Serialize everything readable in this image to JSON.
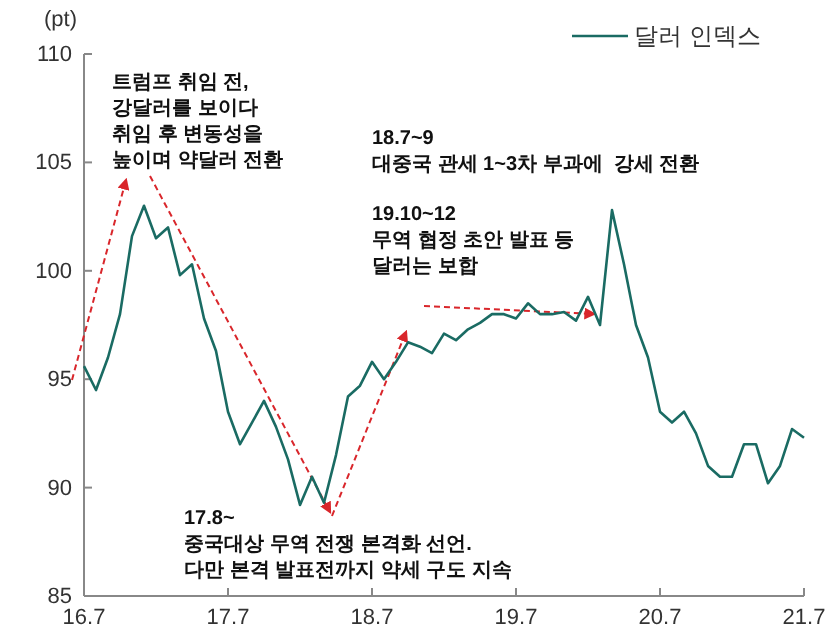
{
  "chart_data": {
    "type": "line",
    "ylabel": "(pt)",
    "legend": "top right",
    "grid": false,
    "categories": [
      "16.7",
      null,
      null,
      null,
      null,
      null,
      null,
      null,
      null,
      null,
      null,
      null,
      "17.7",
      null,
      null,
      null,
      null,
      null,
      null,
      null,
      null,
      null,
      null,
      null,
      "18.7",
      null,
      null,
      null,
      null,
      null,
      null,
      null,
      null,
      null,
      null,
      null,
      "19.7",
      null,
      null,
      null,
      null,
      null,
      null,
      null,
      null,
      null,
      null,
      null,
      "20.7",
      null,
      null,
      null,
      null,
      null,
      null,
      null,
      null,
      null,
      null,
      null,
      "21.7"
    ],
    "ylim": [
      85,
      110
    ],
    "yticks": [
      85,
      90,
      95,
      100,
      105,
      110
    ],
    "series": [
      {
        "name": "달러 인덱스",
        "color": "#1a6b63",
        "values": [
          95.6,
          94.5,
          96,
          98,
          101.6,
          103,
          101.5,
          102,
          99.8,
          100.3,
          97.8,
          96.3,
          93.5,
          92,
          93,
          94,
          92.8,
          91.3,
          89.2,
          90.5,
          89.3,
          91.5,
          94.2,
          94.7,
          95.8,
          95,
          95.8,
          96.7,
          96.5,
          96.2,
          97.1,
          96.8,
          97.3,
          97.6,
          98,
          98,
          97.8,
          98.5,
          98,
          98,
          98.1,
          97.7,
          98.8,
          97.5,
          102.8,
          100.3,
          97.5,
          96,
          93.5,
          93,
          93.5,
          92.5,
          91,
          90.5,
          90.5,
          92,
          92,
          90.2,
          91,
          92.7,
          92.3
        ]
      }
    ],
    "annotations": [
      "트럼프 취임 전,\n강달러를 보이다\n취임 후 변동성을\n높이며 약달러 전환",
      "18.7~9\n대중국 관세 1~3차 부과에  강세 전환",
      "19.10~12\n무역 협정 초안 발표 등\n달러는 보합",
      "17.8~\n중국대상 무역 전쟁 본격화 선언.\n다만 본격 발표전까지 약세 구도 지속"
    ]
  }
}
